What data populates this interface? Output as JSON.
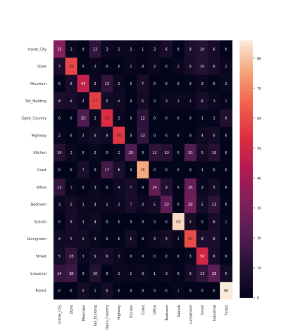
{
  "chart_data": {
    "type": "heatmap",
    "title": "",
    "xlabel": "",
    "ylabel": "",
    "row_labels": [
      "Inside_City",
      "Store",
      "Mountain",
      "Tall_Building",
      "Open_Country",
      "Highway",
      "Kitchen",
      "Coast",
      "Office",
      "Bedroom",
      "Suburb",
      "Livingroom",
      "Street",
      "Industrial",
      "Forest"
    ],
    "col_labels": [
      "Inside_City",
      "Store",
      "Mountain",
      "Tall_Building",
      "Open_Country",
      "Highway",
      "Kitchen",
      "Coast",
      "Office",
      "Bedroom",
      "Suburb",
      "Livingroom",
      "Street",
      "Industrial",
      "Forest"
    ],
    "values": [
      [
        33,
        3,
        0,
        13,
        3,
        2,
        3,
        1,
        3,
        6,
        0,
        8,
        10,
        6,
        0
      ],
      [
        7,
        59,
        0,
        2,
        0,
        0,
        2,
        0,
        2,
        0,
        2,
        6,
        10,
        6,
        2
      ],
      [
        0,
        6,
        47,
        2,
        13,
        3,
        0,
        7,
        0,
        0,
        0,
        0,
        2,
        0,
        3
      ],
      [
        8,
        6,
        3,
        57,
        5,
        4,
        0,
        5,
        0,
        3,
        3,
        2,
        6,
        3,
        1
      ],
      [
        0,
        0,
        20,
        2,
        53,
        3,
        0,
        12,
        0,
        0,
        0,
        0,
        1,
        1,
        9
      ],
      [
        2,
        0,
        3,
        5,
        4,
        56,
        0,
        13,
        0,
        0,
        0,
        0,
        4,
        5,
        0
      ],
      [
        10,
        3,
        0,
        2,
        0,
        2,
        20,
        0,
        12,
        10,
        0,
        20,
        5,
        10,
        0
      ],
      [
        0,
        0,
        7,
        0,
        17,
        8,
        0,
        76,
        0,
        0,
        0,
        0,
        1,
        0,
        0
      ],
      [
        13,
        1,
        0,
        3,
        0,
        4,
        7,
        0,
        24,
        9,
        0,
        26,
        2,
        5,
        0
      ],
      [
        3,
        5,
        2,
        3,
        2,
        3,
        7,
        3,
        5,
        23,
        0,
        28,
        5,
        12,
        0
      ],
      [
        0,
        6,
        3,
        4,
        0,
        0,
        0,
        0,
        0,
        0,
        83,
        5,
        0,
        6,
        1
      ],
      [
        4,
        5,
        5,
        2,
        0,
        0,
        5,
        0,
        3,
        5,
        2,
        60,
        8,
        8,
        0
      ],
      [
        5,
        13,
        3,
        5,
        6,
        3,
        0,
        0,
        0,
        0,
        0,
        3,
        50,
        6,
        0
      ],
      [
        14,
        16,
        0,
        10,
        0,
        3,
        2,
        3,
        1,
        3,
        0,
        6,
        13,
        23,
        5
      ],
      [
        0,
        0,
        5,
        1,
        5,
        0,
        0,
        0,
        0,
        0,
        1,
        0,
        0,
        0,
        86
      ]
    ],
    "vmin": 0,
    "vmax": 86,
    "colorbar_ticks": [
      0,
      10,
      20,
      30,
      40,
      50,
      60,
      70,
      80
    ],
    "colormap": "rocket"
  }
}
